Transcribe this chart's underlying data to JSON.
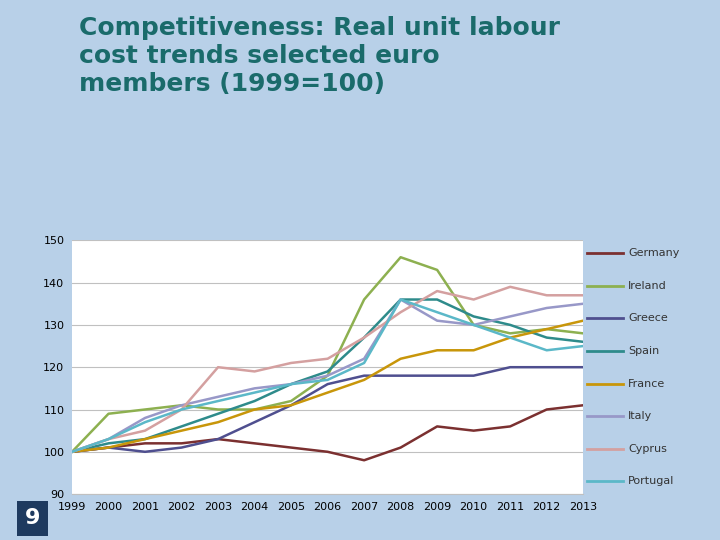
{
  "title_line1": "Competitiveness: Real unit labour",
  "title_line2": "cost trends selected euro",
  "title_line3": "members (1999=100)",
  "title_color": "#1a6b6b",
  "slide_bg": "#b8d0e8",
  "chart_bg": "#ffffff",
  "header_bar_color": "#1e3a5f",
  "years": [
    1999,
    2000,
    2001,
    2002,
    2003,
    2004,
    2005,
    2006,
    2007,
    2008,
    2009,
    2010,
    2011,
    2012,
    2013
  ],
  "series": {
    "Germany": {
      "color": "#7b3030",
      "data": [
        100,
        101,
        102,
        102,
        103,
        102,
        101,
        100,
        98,
        101,
        106,
        105,
        106,
        110,
        111
      ]
    },
    "Ireland": {
      "color": "#8db050",
      "data": [
        100,
        109,
        110,
        111,
        110,
        110,
        112,
        118,
        136,
        146,
        143,
        130,
        128,
        129,
        128
      ]
    },
    "Greece": {
      "color": "#4f4f8f",
      "data": [
        100,
        101,
        100,
        101,
        103,
        107,
        111,
        116,
        118,
        118,
        118,
        118,
        120,
        120,
        120
      ]
    },
    "Spain": {
      "color": "#2e8b8b",
      "data": [
        100,
        102,
        103,
        106,
        109,
        112,
        116,
        119,
        127,
        136,
        136,
        132,
        130,
        127,
        126
      ]
    },
    "France": {
      "color": "#c8960a",
      "data": [
        100,
        101,
        103,
        105,
        107,
        110,
        111,
        114,
        117,
        122,
        124,
        124,
        127,
        129,
        131
      ]
    },
    "Italy": {
      "color": "#9898c8",
      "data": [
        100,
        103,
        108,
        111,
        113,
        115,
        116,
        118,
        122,
        136,
        131,
        130,
        132,
        134,
        135
      ]
    },
    "Cyprus": {
      "color": "#d4a0a0",
      "data": [
        100,
        103,
        105,
        110,
        120,
        119,
        121,
        122,
        127,
        133,
        138,
        136,
        139,
        137,
        137
      ]
    },
    "Portugal": {
      "color": "#5bb8c8",
      "data": [
        100,
        103,
        107,
        110,
        112,
        114,
        116,
        117,
        121,
        136,
        133,
        130,
        127,
        124,
        125
      ]
    }
  },
  "ylim": [
    90,
    150
  ],
  "yticks": [
    90,
    100,
    110,
    120,
    130,
    140,
    150
  ],
  "grid_color": "#c0c0c0",
  "footer_num": "9",
  "dark_navy": "#1e3a5f",
  "legend_fontsize": 8,
  "tick_fontsize": 8,
  "title_fontsize": 18
}
